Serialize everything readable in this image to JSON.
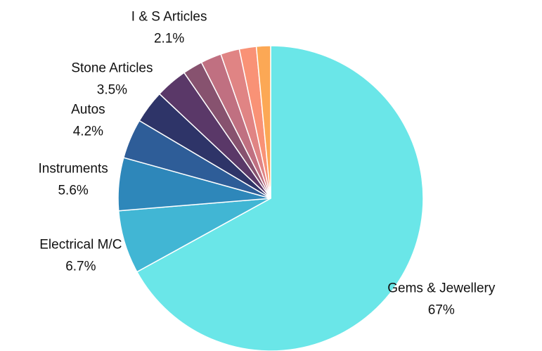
{
  "chart_data": {
    "type": "pie",
    "categories": [
      "Gems & Jewellery",
      "Electrical M/C",
      "Instruments",
      "Autos",
      "Stone Articles",
      null,
      "I & S Articles",
      null,
      null,
      null,
      null
    ],
    "values": [
      67,
      6.7,
      5.6,
      4.2,
      3.5,
      3.4,
      2.1,
      2.2,
      2.0,
      1.8,
      1.5
    ],
    "value_labels": [
      "67%",
      "6.7%",
      "5.6%",
      "4.2%",
      "3.5%",
      null,
      "2.1%",
      null,
      null,
      null,
      null
    ],
    "colors": [
      "#6ae6e8",
      "#41b6d4",
      "#2e87ba",
      "#2e5d98",
      "#2e3468",
      "#5a3868",
      "#87526f",
      "#c07081",
      "#e08484",
      "#f99276",
      "#fca855"
    ]
  }
}
